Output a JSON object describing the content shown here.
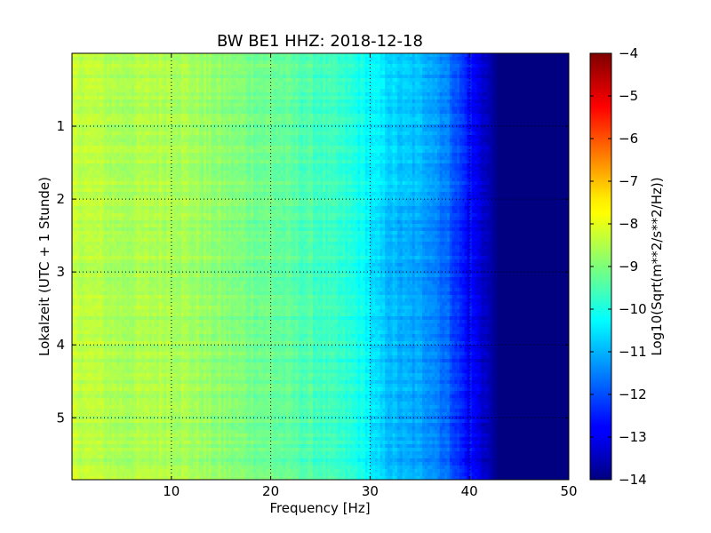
{
  "chart_data": {
    "type": "heatmap",
    "title": "BW BE1 HHZ: 2018-12-18",
    "xlabel": "Frequency [Hz]",
    "ylabel": "Lokalzeit (UTC + 1 Stunde)",
    "xlim": [
      0,
      50
    ],
    "ylim": [
      5.85,
      0
    ],
    "x_ticks": [
      10,
      20,
      30,
      40,
      50
    ],
    "y_ticks": [
      1,
      2,
      3,
      4,
      5
    ],
    "grid": true,
    "colormap": "jet",
    "colorbar": {
      "label": "Log10(Sqrt(m**2/s**2/Hz))",
      "range": [
        -14,
        -4
      ],
      "ticks": [
        -4,
        -5,
        -6,
        -7,
        -8,
        -9,
        -10,
        -11,
        -12,
        -13,
        -14
      ]
    },
    "value_profile": {
      "frequency_hz": [
        0,
        5,
        10,
        15,
        20,
        25,
        28,
        30,
        33,
        36,
        38,
        40,
        42,
        43,
        50
      ],
      "log10_psd": [
        -8.3,
        -8.6,
        -8.5,
        -8.9,
        -9.2,
        -9.6,
        -9.9,
        -10.3,
        -10.8,
        -11.0,
        -11.6,
        -12.6,
        -13.5,
        -14.0,
        -14.0
      ]
    },
    "time_hours_range": [
      0,
      5.85
    ]
  }
}
